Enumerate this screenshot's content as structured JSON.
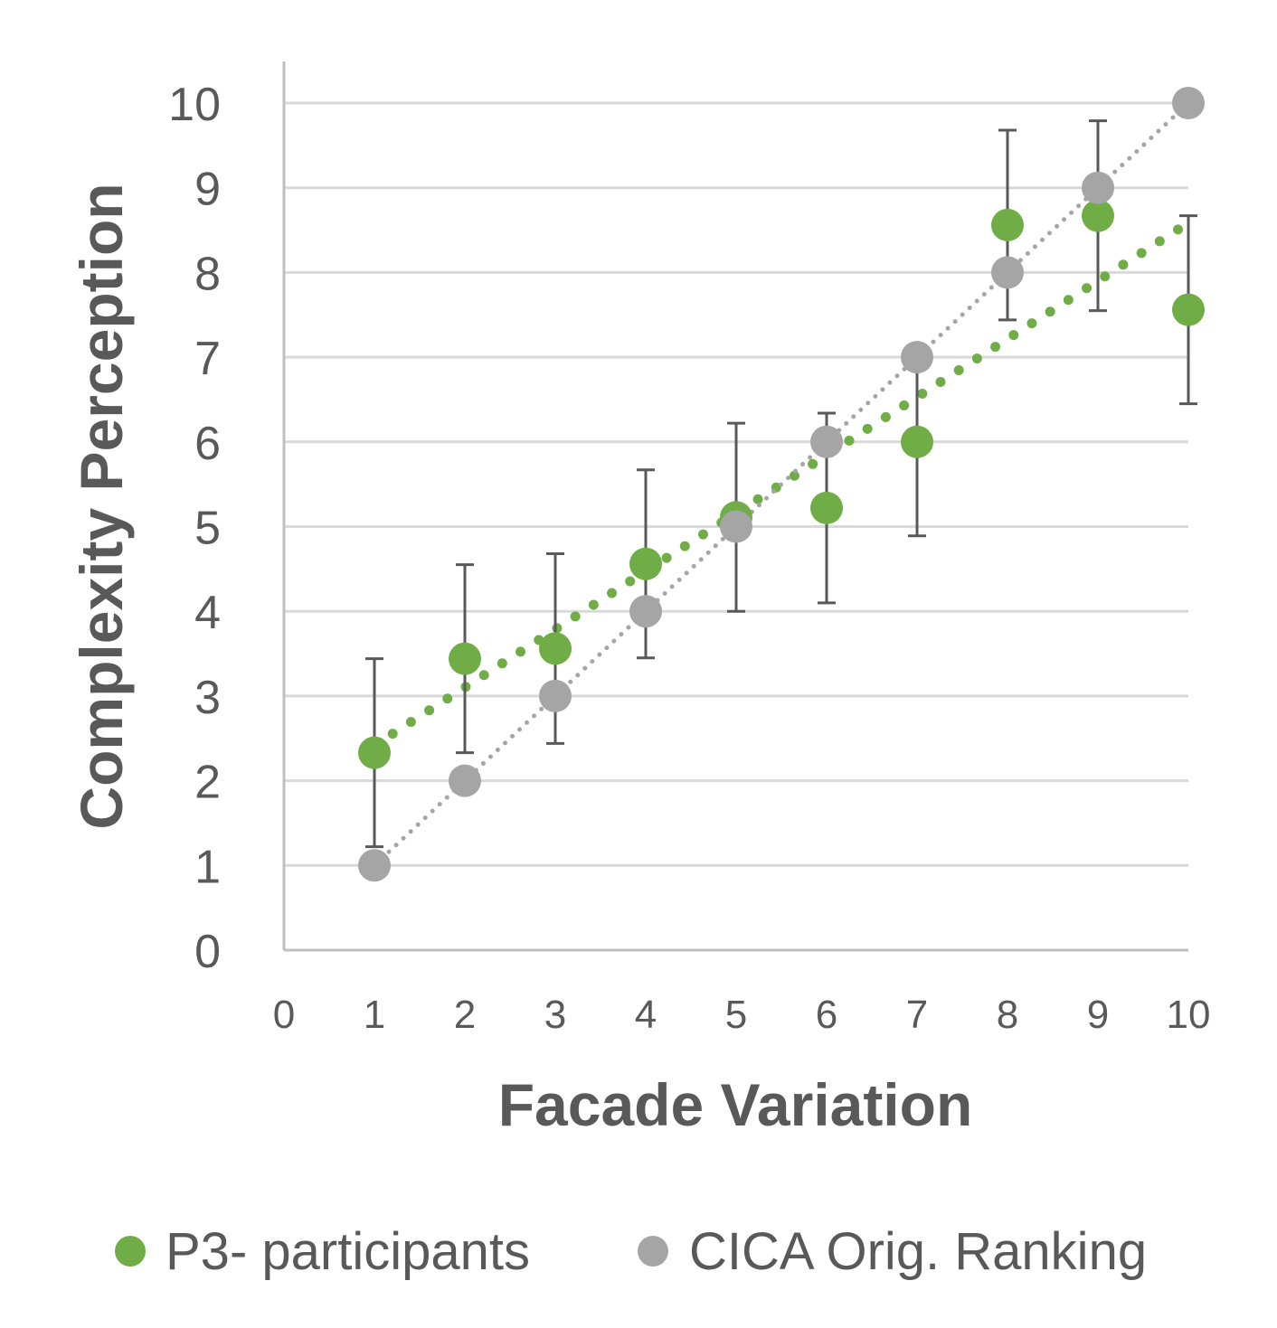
{
  "chart_data": {
    "type": "scatter",
    "xlabel": "Facade Variation",
    "ylabel": "Complexity Perception",
    "xlim": [
      0,
      10
    ],
    "ylim": [
      0,
      10
    ],
    "x_ticks": [
      "0",
      "1",
      "2",
      "3",
      "4",
      "5",
      "6",
      "7",
      "8",
      "9",
      "10"
    ],
    "y_ticks": [
      "0",
      "1",
      "2",
      "3",
      "4",
      "5",
      "6",
      "7",
      "8",
      "9",
      "10"
    ],
    "grid": "horizontal",
    "legend_position": "bottom",
    "series": [
      {
        "name": "P3- participants",
        "color": "#70AD47",
        "x": [
          1,
          2,
          3,
          4,
          5,
          6,
          7,
          8,
          9,
          10
        ],
        "y": [
          2.33,
          3.44,
          3.56,
          4.56,
          5.11,
          5.22,
          6.0,
          8.56,
          8.67,
          7.56
        ],
        "error": [
          1.11,
          1.11,
          1.12,
          1.11,
          1.11,
          1.12,
          1.11,
          1.12,
          1.12,
          1.11
        ],
        "trendline": "linear"
      },
      {
        "name": "CICA Orig. Ranking",
        "color": "#A5A5A5",
        "x": [
          1,
          2,
          3,
          4,
          5,
          6,
          7,
          8,
          9,
          10
        ],
        "y": [
          1,
          2,
          3,
          4,
          5,
          6,
          7,
          8,
          9,
          10
        ],
        "trendline": "linear"
      }
    ]
  }
}
